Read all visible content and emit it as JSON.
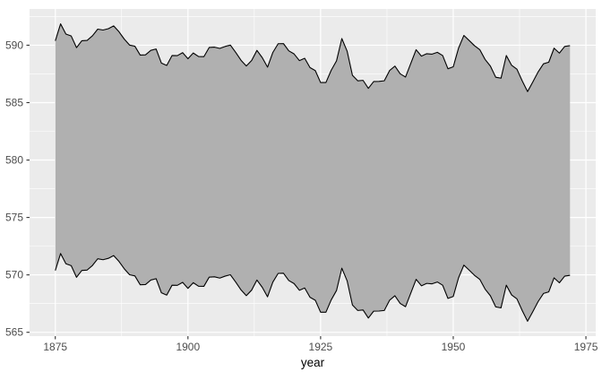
{
  "chart_data": {
    "type": "area",
    "subtype": "ribbon",
    "title": "",
    "xlabel": "year",
    "ylabel": "",
    "legend": "none",
    "grid": "on",
    "x_ticks": [
      1875,
      1900,
      1925,
      1950,
      1975
    ],
    "y_ticks": [
      565,
      570,
      575,
      580,
      585,
      590
    ],
    "x_range": [
      1870.15,
      1976.85
    ],
    "y_range": [
      564.665,
      593.155
    ],
    "year_start": 1875,
    "year_step": 1,
    "year_end": 1972,
    "ribbon_ymin_offset": -10,
    "ribbon_ymax_offset": 10,
    "levels": [
      580.38,
      581.86,
      580.97,
      580.8,
      579.79,
      580.39,
      580.42,
      580.82,
      581.4,
      581.32,
      581.44,
      581.68,
      581.17,
      580.53,
      580.01,
      579.91,
      579.14,
      579.16,
      579.55,
      579.67,
      578.44,
      578.24,
      579.1,
      579.09,
      579.35,
      578.82,
      579.32,
      579.01,
      579.0,
      579.8,
      579.83,
      579.72,
      579.89,
      580.01,
      579.37,
      578.69,
      578.19,
      578.67,
      579.55,
      578.92,
      578.09,
      579.37,
      580.13,
      580.14,
      579.51,
      579.24,
      578.66,
      578.86,
      578.05,
      577.79,
      576.75,
      576.75,
      577.82,
      578.64,
      580.58,
      579.48,
      577.38,
      576.9,
      576.94,
      576.24,
      576.84,
      576.85,
      576.9,
      577.79,
      578.18,
      577.51,
      577.23,
      578.42,
      579.61,
      579.05,
      579.26,
      579.22,
      579.38,
      579.1,
      577.95,
      578.12,
      579.75,
      580.85,
      580.41,
      579.96,
      579.61,
      578.76,
      578.18,
      577.21,
      577.13,
      579.1,
      578.25,
      577.91,
      576.89,
      575.96,
      576.8,
      577.68,
      578.38,
      578.52,
      579.74,
      579.31,
      579.89,
      579.96
    ],
    "colors": {
      "page_bg": "#FFFFFF",
      "panel_bg": "#EBEBEB",
      "grid_major": "#FFFFFF",
      "grid_minor": "#FFFFFF",
      "ribbon_fill": "#B0B0B0",
      "line": "#000000",
      "axis_text": "#4D4D4D",
      "axis_title": "#000000",
      "tick_mark": "#333333"
    }
  }
}
